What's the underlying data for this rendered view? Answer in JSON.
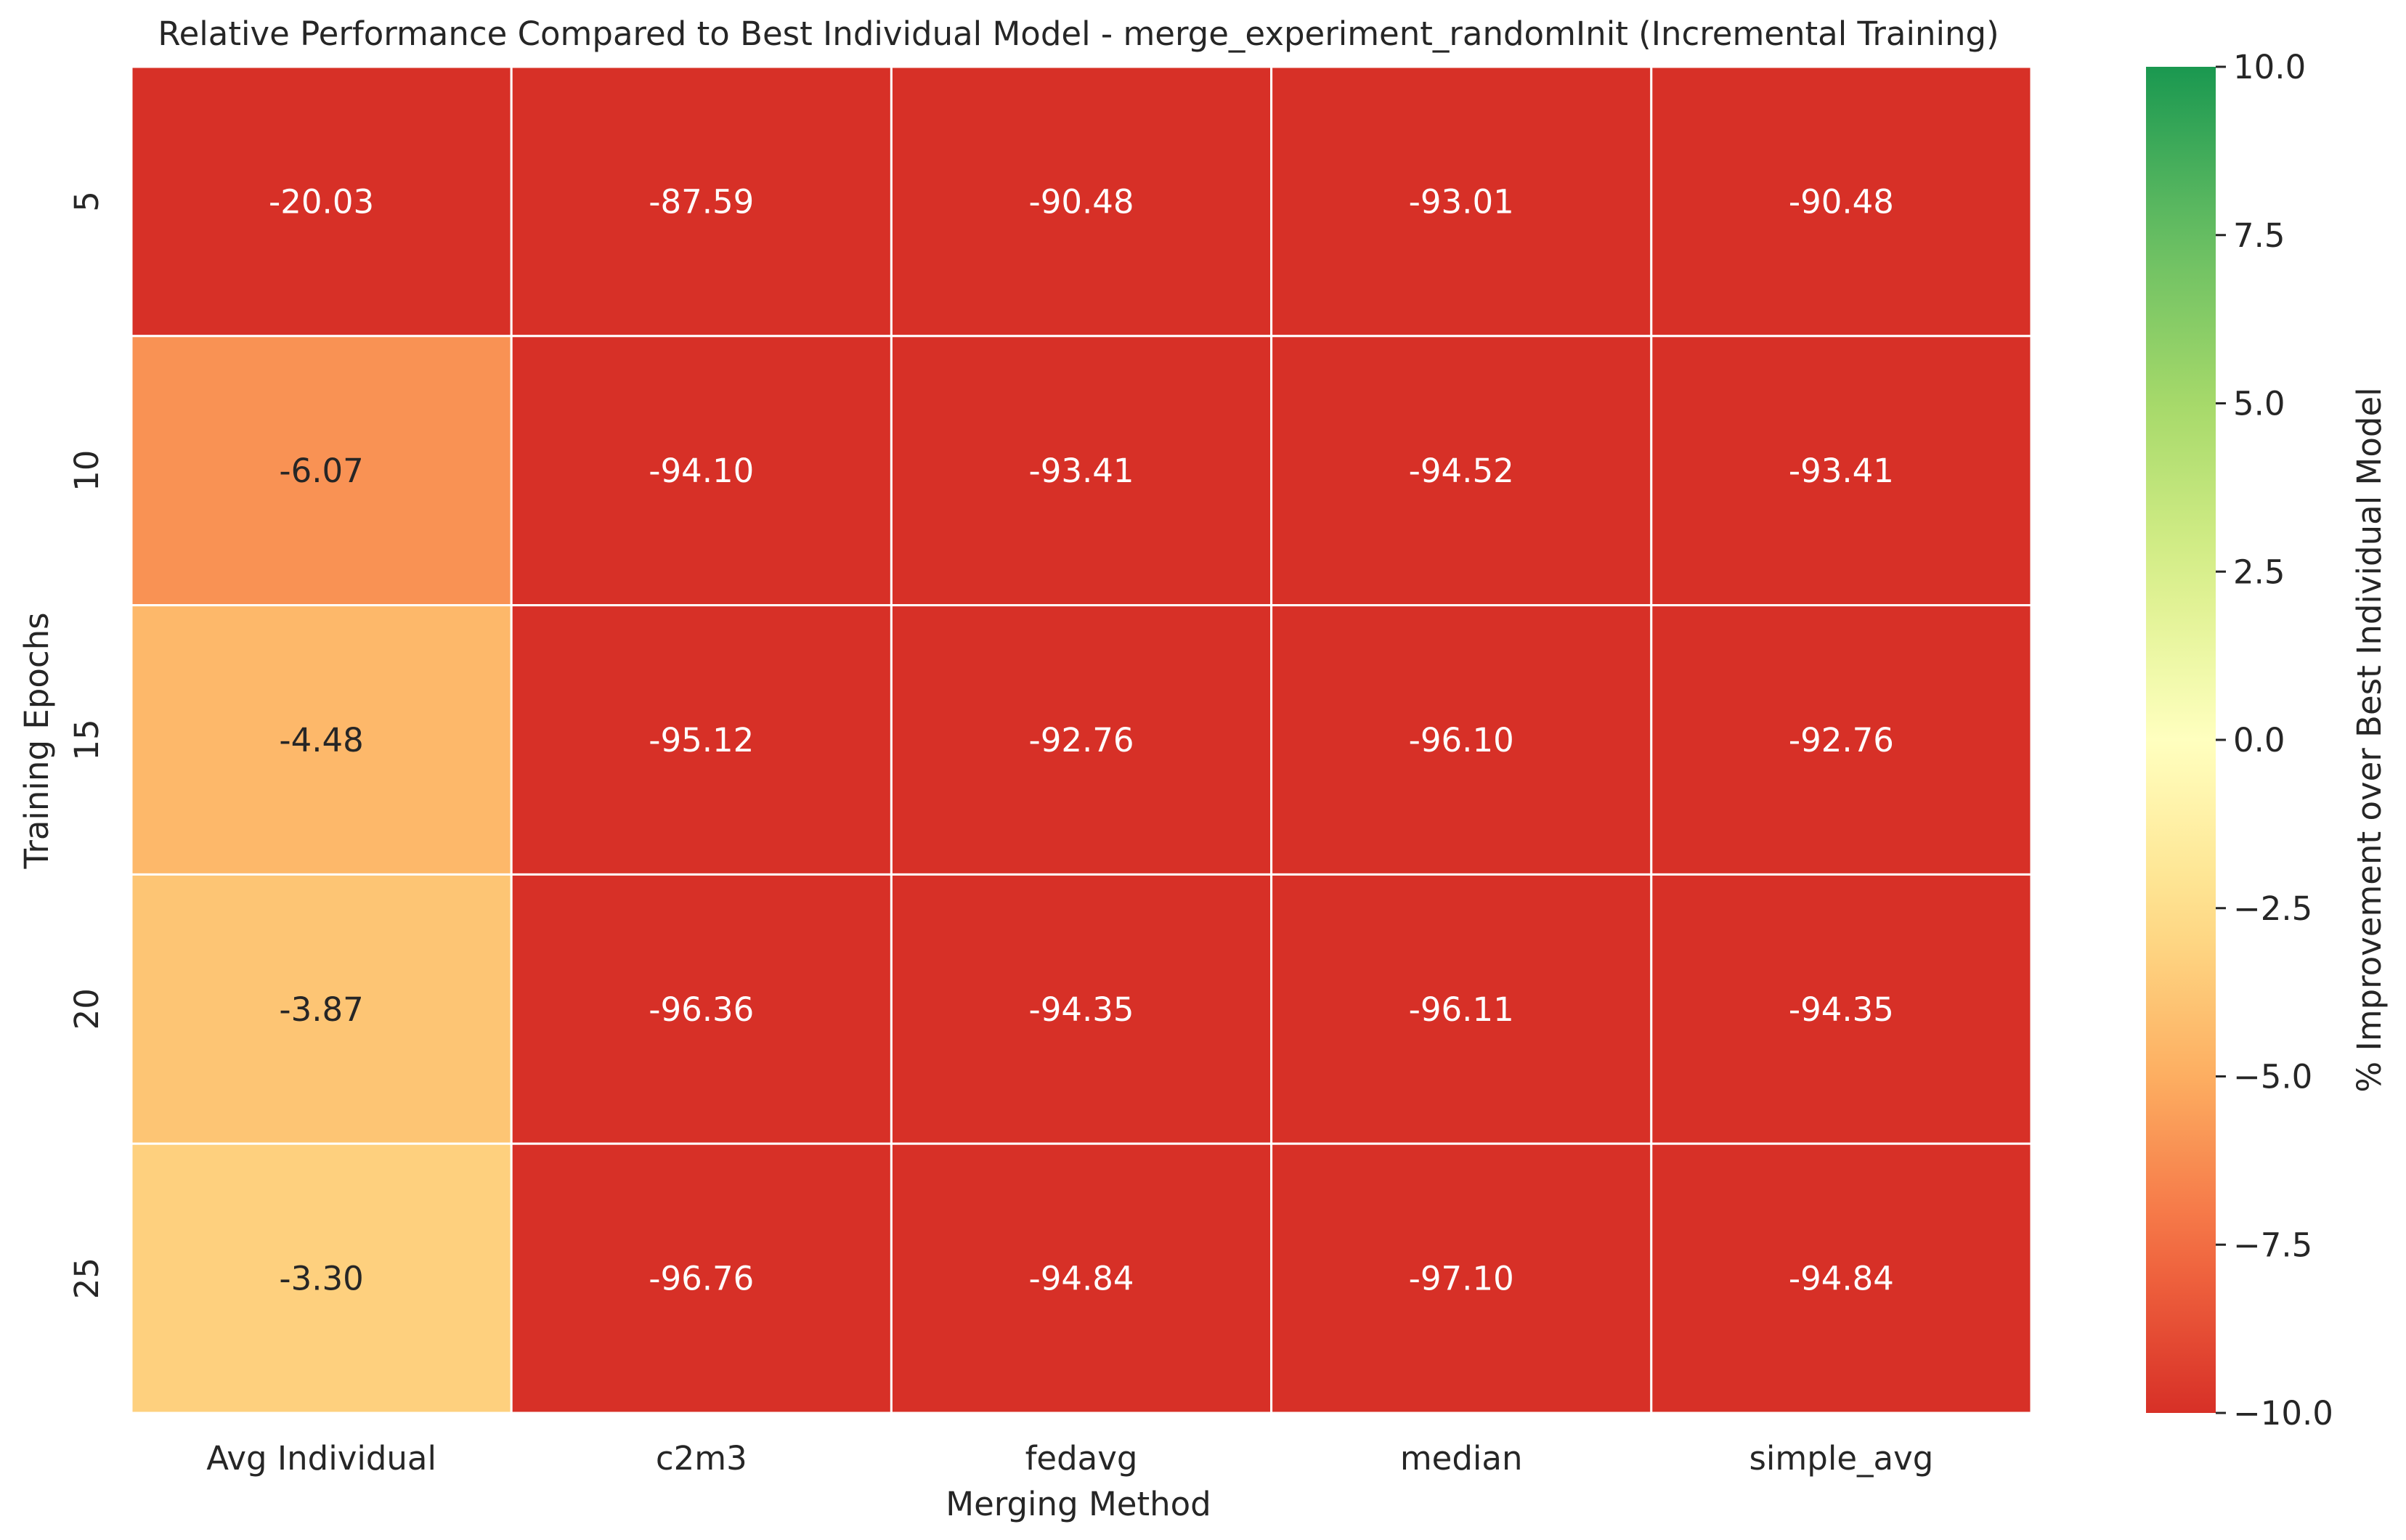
{
  "chart_data": {
    "type": "heatmap",
    "title": "Relative Performance Compared to Best Individual Model - merge_experiment_randomInit (Incremental Training)",
    "xlabel": "Merging Method",
    "ylabel": "Training Epochs",
    "x_categories": [
      "Avg Individual",
      "c2m3",
      "fedavg",
      "median",
      "simple_avg"
    ],
    "y_categories": [
      "5",
      "10",
      "15",
      "20",
      "25"
    ],
    "values": [
      [
        -20.03,
        -87.59,
        -90.48,
        -93.01,
        -90.48
      ],
      [
        -6.07,
        -94.1,
        -93.41,
        -94.52,
        -93.41
      ],
      [
        -4.48,
        -95.12,
        -92.76,
        -96.1,
        -92.76
      ],
      [
        -3.87,
        -96.36,
        -94.35,
        -96.11,
        -94.35
      ],
      [
        -3.3,
        -96.76,
        -94.84,
        -97.1,
        -94.84
      ]
    ],
    "cell_labels": [
      [
        "-20.03",
        "-87.59",
        "-90.48",
        "-93.01",
        "-90.48"
      ],
      [
        "-6.07",
        "-94.10",
        "-93.41",
        "-94.52",
        "-93.41"
      ],
      [
        "-4.48",
        "-95.12",
        "-92.76",
        "-96.10",
        "-92.76"
      ],
      [
        "-3.87",
        "-96.36",
        "-94.35",
        "-96.11",
        "-94.35"
      ],
      [
        "-3.30",
        "-96.76",
        "-94.84",
        "-97.10",
        "-94.84"
      ]
    ],
    "colorbar": {
      "label": "% Improvement over Best Individual Model",
      "vmin": -10.0,
      "vmax": 10.0,
      "ticks": [
        10.0,
        7.5,
        5.0,
        2.5,
        0.0,
        -2.5,
        -5.0,
        -7.5,
        -10.0
      ],
      "tick_labels": [
        "10.0",
        "7.5",
        "5.0",
        "2.5",
        "0.0",
        "−2.5",
        "−5.0",
        "−7.5",
        "−10.0"
      ],
      "colormap": "RdYlGn",
      "colormap_stops": [
        "#a50026",
        "#d73027",
        "#f46d43",
        "#fdae61",
        "#fee08b",
        "#ffffbf",
        "#d9ef8b",
        "#a6d96a",
        "#66bd63",
        "#1a9850",
        "#006837"
      ]
    },
    "grid": false
  }
}
